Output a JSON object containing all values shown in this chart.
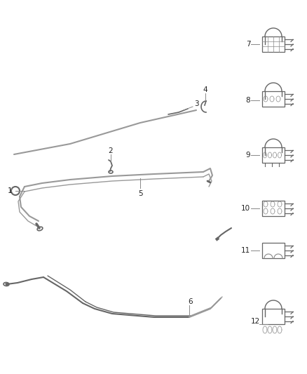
{
  "bg_color": "#ffffff",
  "fig_width": 4.38,
  "fig_height": 5.33,
  "dpi": 100,
  "line_color": "#888888",
  "dark_color": "#555555",
  "label_fontsize": 7.5,
  "label_color": "#222222"
}
